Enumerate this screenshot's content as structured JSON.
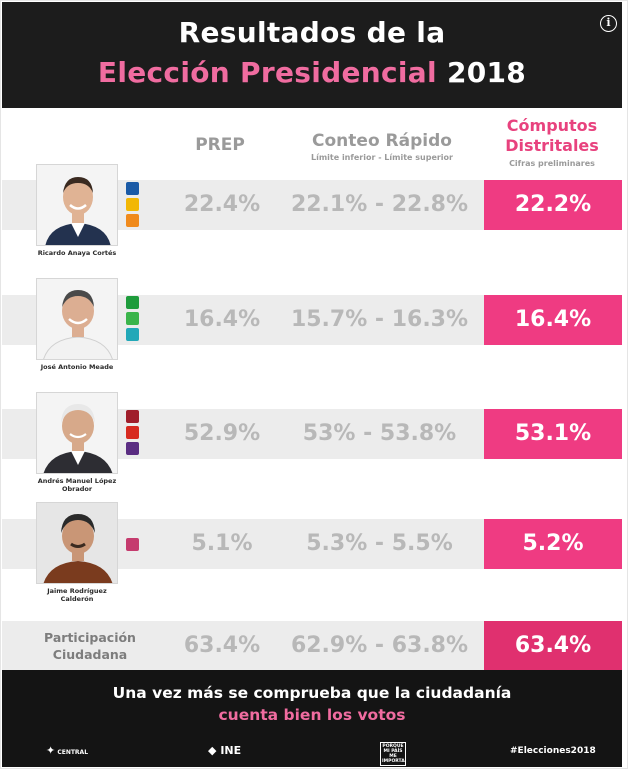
{
  "header": {
    "title_line1": "Resultados de la",
    "title_line2_highlight": "Elección Presidencial",
    "title_line2_year": "2018",
    "info_icon_glyph": "i"
  },
  "columns": {
    "prep": "PREP",
    "conteo": "Conteo Rápido",
    "conteo_sub": "Límite inferior - Límite superior",
    "computos_line1": "Cómputos",
    "computos_line2": "Distritales",
    "computos_sub": "Cifras preliminares"
  },
  "candidates": [
    {
      "name": "Ricardo Anaya Cortés",
      "prep": "22.4%",
      "conteo": "22.1% - 22.8%",
      "computos": "22.2%",
      "party_logos": [
        "pan-logo",
        "prd-logo",
        "mc-logo"
      ],
      "logo_colors": [
        "#1a5aa6",
        "#f2b705",
        "#f08a1c"
      ],
      "suit_color": "#23324f",
      "skin_color": "#e0b394",
      "hair_color": "#3a2a20"
    },
    {
      "name": "José Antonio Meade",
      "prep": "16.4%",
      "conteo": "15.7% - 16.3%",
      "computos": "16.4%",
      "party_logos": [
        "pri-logo",
        "pvem-logo",
        "panal-logo"
      ],
      "logo_colors": [
        "#1e9c3c",
        "#3ab44a",
        "#22a8b8"
      ],
      "suit_color": "#f2f2f2",
      "skin_color": "#dcae92",
      "hair_color": "#4a4a4a"
    },
    {
      "name": "Andrés Manuel López Obrador",
      "prep": "52.9%",
      "conteo": "53% - 53.8%",
      "computos": "53.1%",
      "party_logos": [
        "morena-logo",
        "pt-logo",
        "pes-logo"
      ],
      "logo_colors": [
        "#a01e2b",
        "#d72a20",
        "#5a2d82"
      ],
      "suit_color": "#2d2d33",
      "skin_color": "#d7a98a",
      "hair_color": "#e8e8e8"
    },
    {
      "name": "Jaime Rodríguez Calderón",
      "prep": "5.1%",
      "conteo": "5.3% - 5.5%",
      "computos": "5.2%",
      "party_logos": [
        "independiente-logo"
      ],
      "logo_colors": [
        "#c53b6e"
      ],
      "suit_color": "#7a3b1e",
      "skin_color": "#c99676",
      "hair_color": "#2a2a2a"
    }
  ],
  "participation": {
    "label_line1": "Participación",
    "label_line2": "Ciudadana",
    "prep": "63.4%",
    "conteo": "62.9% - 63.8%",
    "computos": "63.4%"
  },
  "footer": {
    "line1": "Una vez más se comprueba que la ciudadanía",
    "line2": "cuenta bien los votos",
    "logo_central": "CENTRAL",
    "logo_ine": "INE",
    "logo_porque": "PORQUE MI PAÍS ME IMPORTA",
    "hashtag": "#Elecciones2018"
  },
  "colors": {
    "pink": "#ef3b82",
    "pink_text": "#f06ca0",
    "band_gray": "#ececec",
    "value_gray": "#b8b8b8",
    "dark": "#1c1c1c"
  }
}
